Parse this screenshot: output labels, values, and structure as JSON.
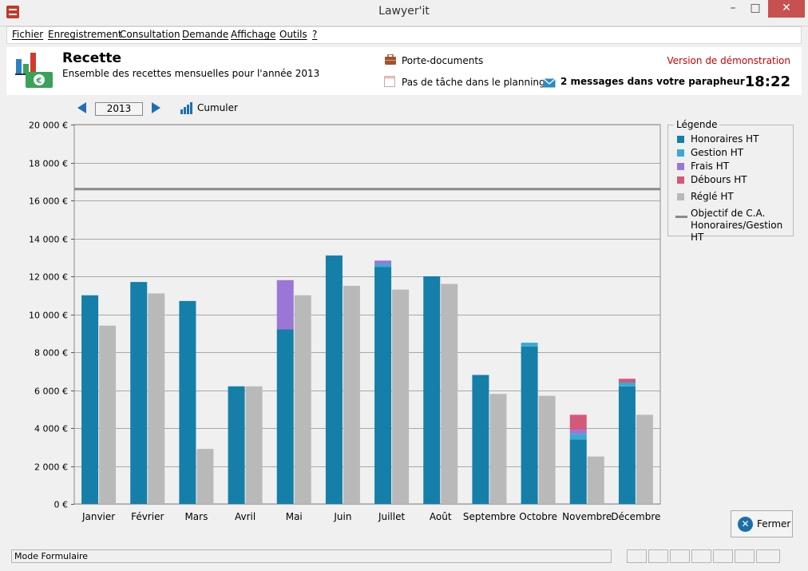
{
  "window": {
    "title": "Lawyer'it",
    "minimize": "–",
    "maximize": "□",
    "close": "✕"
  },
  "menu": {
    "items": [
      "Fichier",
      "Enregistrement",
      "Consultation",
      "Demande",
      "Affichage",
      "Outils",
      "?"
    ]
  },
  "header": {
    "title": "Recette",
    "subtitle": "Ensemble des recettes mensuelles pour l'année 2013",
    "porte_documents": "Porte-documents",
    "planning": "Pas de tâche dans le planning",
    "messages": "2 messages dans votre parapheur",
    "demo": "Version de démonstration",
    "time": "18:22"
  },
  "nav": {
    "year": "2013",
    "cumuler": "Cumuler"
  },
  "legend": {
    "title": "Légende",
    "items": [
      {
        "label": "Honoraires HT",
        "color": "#157fa9"
      },
      {
        "label": "Gestion HT",
        "color": "#3aaad4"
      },
      {
        "label": "Frais HT",
        "color": "#9b76d6"
      },
      {
        "label": "Débours HT",
        "color": "#d4587a"
      },
      {
        "label": "Réglé HT",
        "color": "#b9b9b9"
      },
      {
        "label": "Objectif de C.A. Honoraires/Gestion HT",
        "color": "#8a8a8a"
      }
    ]
  },
  "buttons": {
    "fermer": "Fermer"
  },
  "status": {
    "mode": "Mode Formulaire"
  },
  "chart_data": {
    "type": "bar",
    "title": "Recette 2013",
    "ylim": [
      0,
      20000
    ],
    "yticks": [
      0,
      2000,
      4000,
      6000,
      8000,
      10000,
      12000,
      14000,
      16000,
      18000,
      20000
    ],
    "ytick_labels": [
      "0 €",
      "2 000 €",
      "4 000 €",
      "6 000 €",
      "8 000 €",
      "10 000 €",
      "12 000 €",
      "14 000 €",
      "16 000 €",
      "18 000 €",
      "20 000 €"
    ],
    "categories": [
      "Janvier",
      "Février",
      "Mars",
      "Avril",
      "Mai",
      "Juin",
      "Juillet",
      "Août",
      "Septembre",
      "Octobre",
      "Novembre",
      "Décembre"
    ],
    "stacked_series": [
      {
        "name": "Honoraires HT",
        "color": "#157fa9",
        "values": [
          11000,
          11700,
          10700,
          6200,
          9200,
          13100,
          12500,
          12000,
          6800,
          8300,
          3400,
          6200
        ]
      },
      {
        "name": "Gestion HT",
        "color": "#3aaad4",
        "values": [
          0,
          0,
          0,
          0,
          0,
          0,
          150,
          0,
          0,
          200,
          300,
          200
        ]
      },
      {
        "name": "Frais HT",
        "color": "#9b76d6",
        "values": [
          0,
          0,
          0,
          0,
          2600,
          0,
          180,
          0,
          0,
          0,
          200,
          0
        ]
      },
      {
        "name": "Débours HT",
        "color": "#d4587a",
        "values": [
          0,
          0,
          0,
          0,
          0,
          0,
          0,
          0,
          0,
          0,
          800,
          200
        ]
      }
    ],
    "side_series": {
      "name": "Réglé HT",
      "color": "#b9b9b9",
      "values": [
        9400,
        11100,
        2900,
        6200,
        11000,
        11500,
        11300,
        11600,
        5800,
        5700,
        2500,
        4700
      ]
    },
    "objective": {
      "name": "Objectif de C.A. Honoraires/Gestion HT",
      "value": 16600
    },
    "grid": true
  }
}
